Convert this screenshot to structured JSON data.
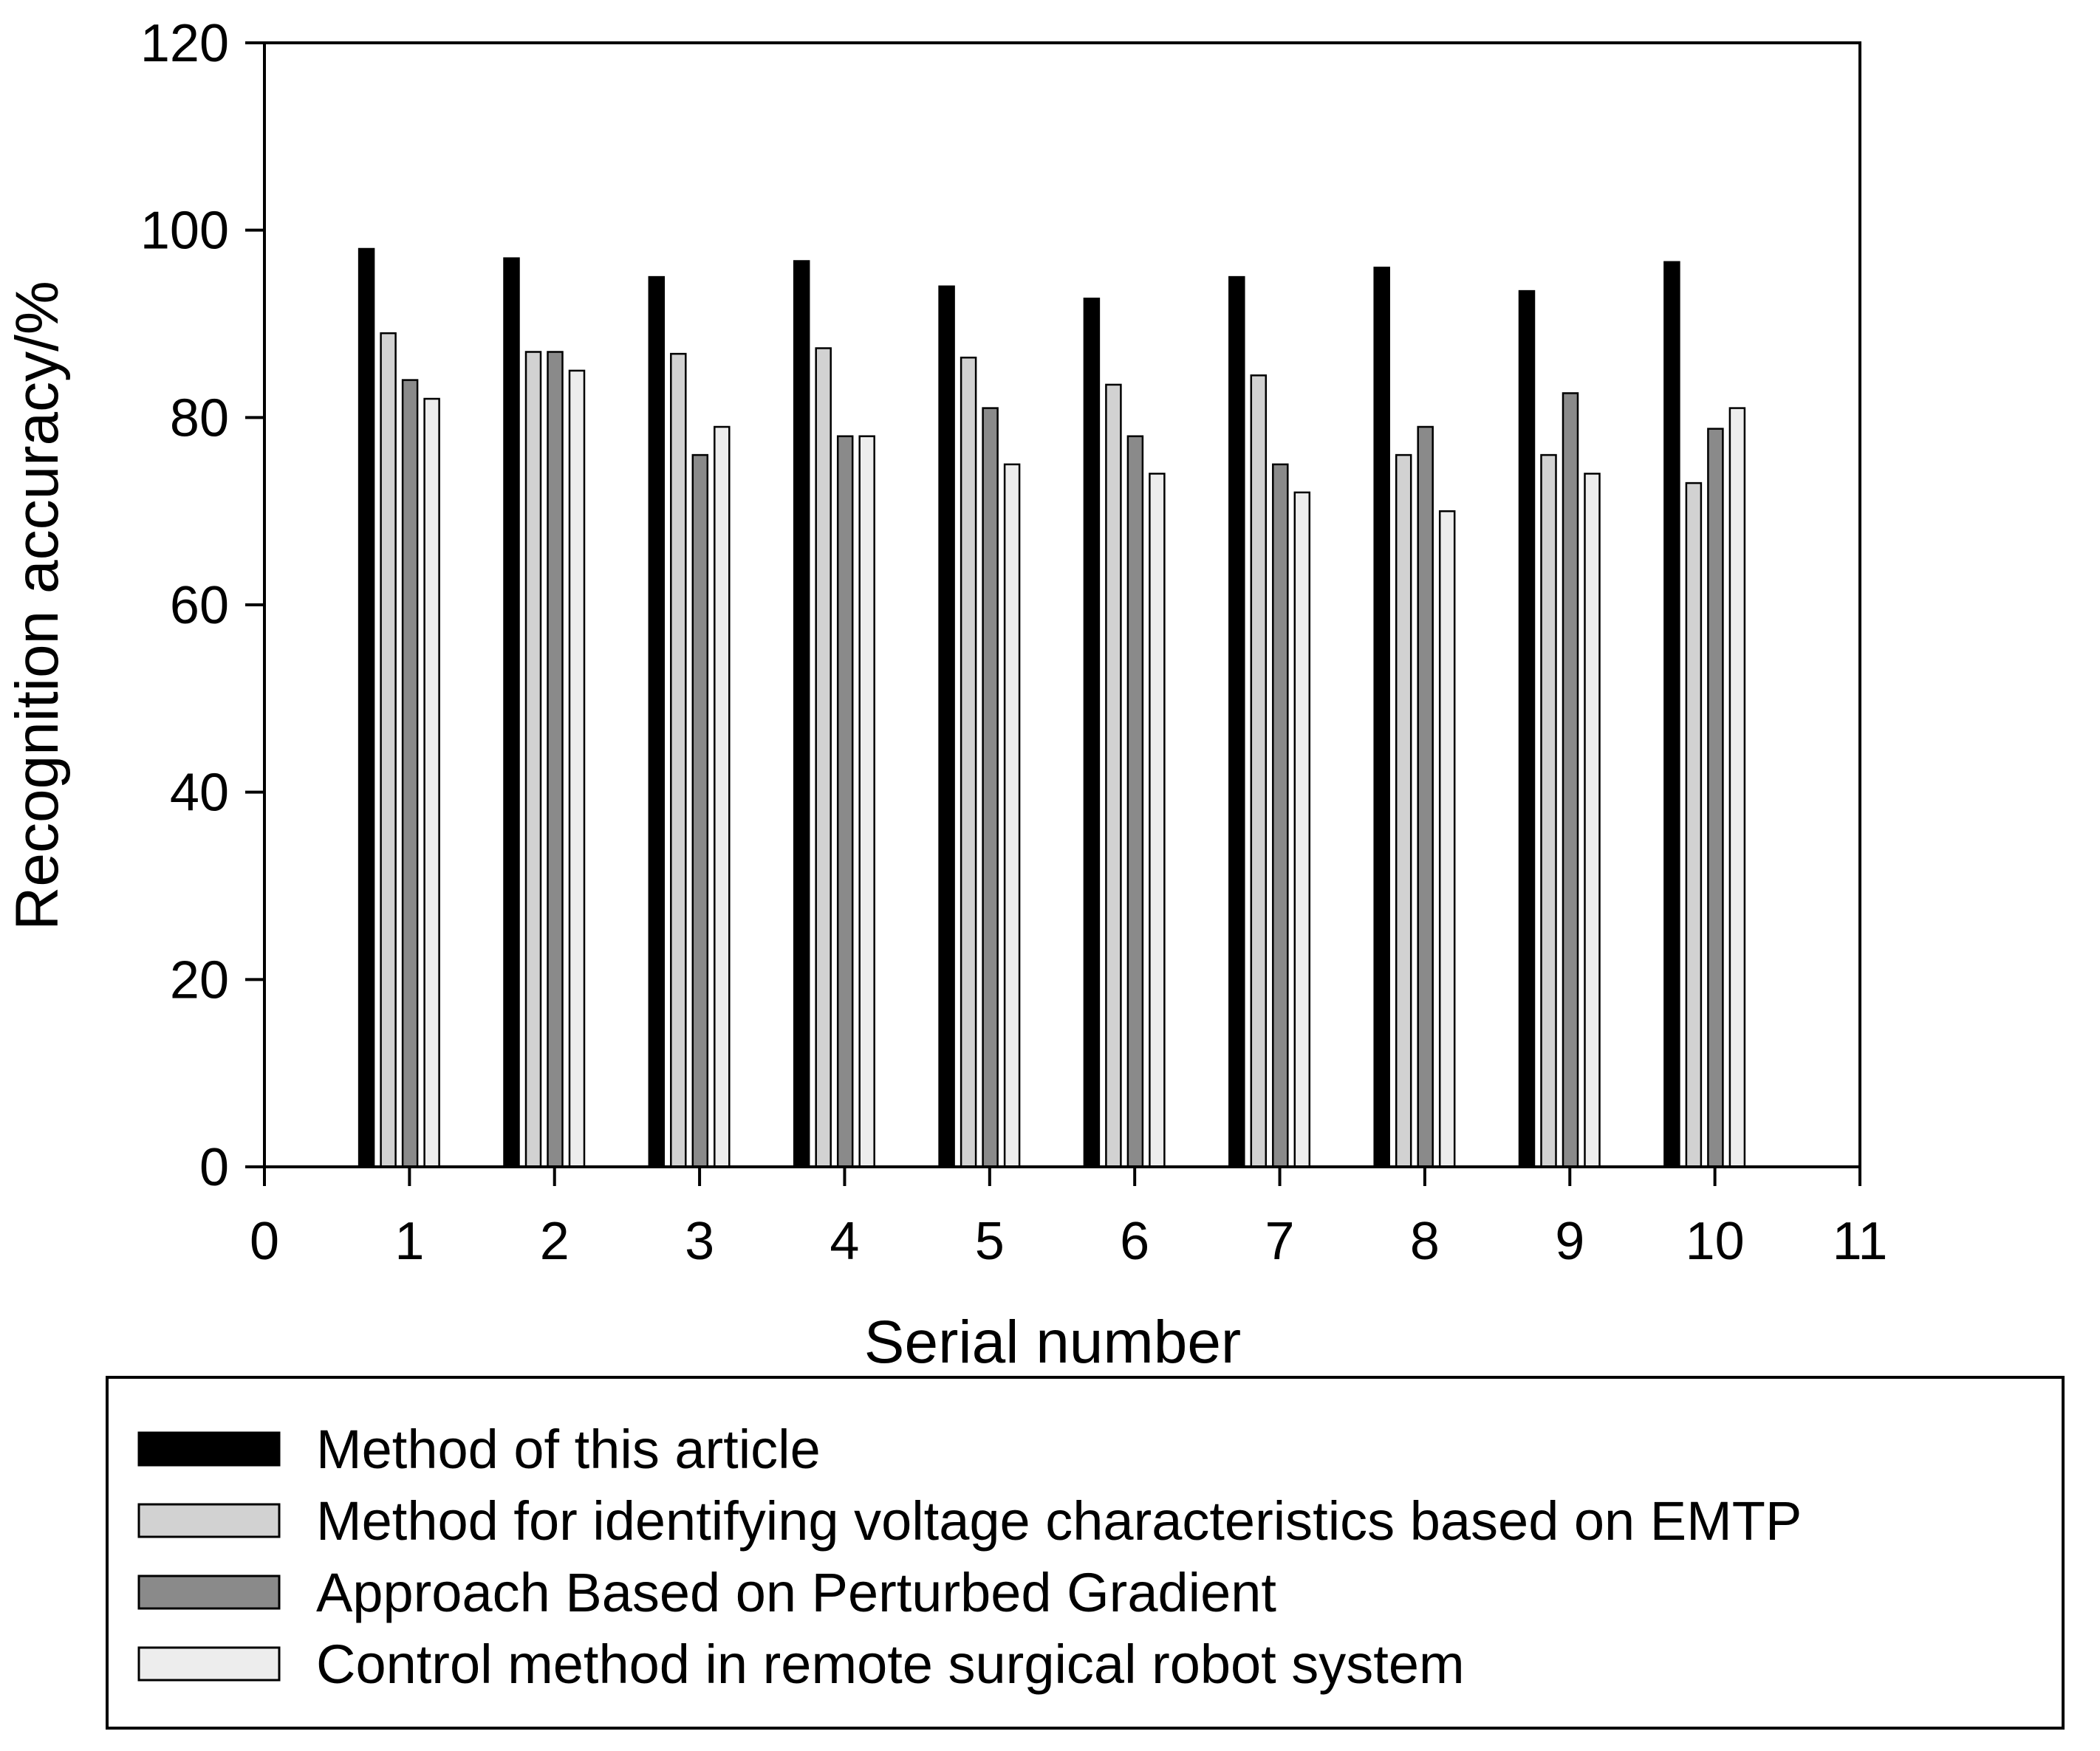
{
  "chart_data": {
    "type": "bar",
    "xlabel": "Serial number",
    "ylabel": "Recognition accuracy/%",
    "xlim": [
      0,
      11
    ],
    "ylim": [
      0,
      120
    ],
    "x_ticks": [
      "0",
      "1",
      "2",
      "3",
      "4",
      "5",
      "6",
      "7",
      "8",
      "9",
      "10",
      "11"
    ],
    "y_ticks": [
      "0",
      "20",
      "40",
      "60",
      "80",
      "100",
      "120"
    ],
    "categories": [
      1,
      2,
      3,
      4,
      5,
      6,
      7,
      8,
      9,
      10
    ],
    "grid": false,
    "legend_position": "bottom",
    "series": [
      {
        "name": "Method of this article",
        "color": "#000000",
        "values": [
          98,
          97,
          95,
          96.7,
          94,
          92.7,
          95,
          96,
          93.5,
          96.6
        ]
      },
      {
        "name": "Method for identifying voltage characteristics based on EMTP",
        "color": "#d2d2d2",
        "values": [
          89,
          87,
          86.8,
          87.4,
          86.4,
          83.5,
          84.5,
          76,
          76,
          73
        ]
      },
      {
        "name": "Approach Based on Perturbed Gradient",
        "color": "#8a8a8a",
        "values": [
          84,
          87,
          76,
          78,
          81,
          78,
          75,
          79,
          82.6,
          78.8
        ]
      },
      {
        "name": "Control method in remote surgical robot system",
        "color": "#ededed",
        "values": [
          82,
          85,
          79,
          78,
          75,
          74,
          72,
          70,
          74,
          81
        ]
      }
    ]
  }
}
